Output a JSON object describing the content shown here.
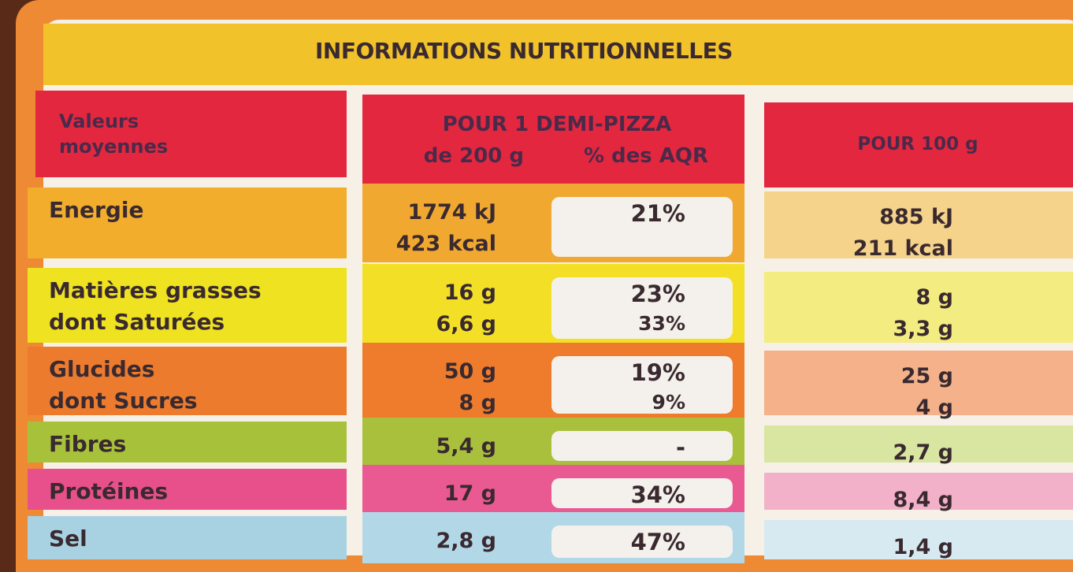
{
  "title": "INFORMATIONS NUTRITIONNELLES",
  "header": {
    "label": [
      "Valeurs",
      "moyennes"
    ],
    "portion": "POUR 1 DEMI-PIZZA",
    "portion_weight": "de 200 g",
    "aqr": "% des AQR",
    "per100": "POUR 100 g"
  },
  "rows": [
    {
      "name": [
        "Energie"
      ],
      "portion": [
        "1774 kJ",
        "423 kcal"
      ],
      "aqr": [
        "21%"
      ],
      "per100": [
        "885 kJ",
        "211 kcal"
      ]
    },
    {
      "name": [
        "Matières grasses",
        "dont Saturées"
      ],
      "portion": [
        "16 g",
        "6,6 g"
      ],
      "aqr": [
        "23%",
        "33%"
      ],
      "per100": [
        "8 g",
        "3,3 g"
      ]
    },
    {
      "name": [
        "Glucides",
        "dont Sucres"
      ],
      "portion": [
        "50 g",
        "8 g"
      ],
      "aqr": [
        "19%",
        "9%"
      ],
      "per100": [
        "25 g",
        "4 g"
      ]
    },
    {
      "name": [
        "Fibres"
      ],
      "portion": [
        "5,4 g"
      ],
      "aqr": [
        "-"
      ],
      "per100": [
        "2,7 g"
      ]
    },
    {
      "name": [
        "Protéines"
      ],
      "portion": [
        "17 g"
      ],
      "aqr": [
        "34%"
      ],
      "per100": [
        "8,4 g"
      ]
    },
    {
      "name": [
        "Sel"
      ],
      "portion": [
        "2,8 g"
      ],
      "aqr": [
        "47%"
      ],
      "per100": [
        "1,4 g"
      ]
    }
  ]
}
